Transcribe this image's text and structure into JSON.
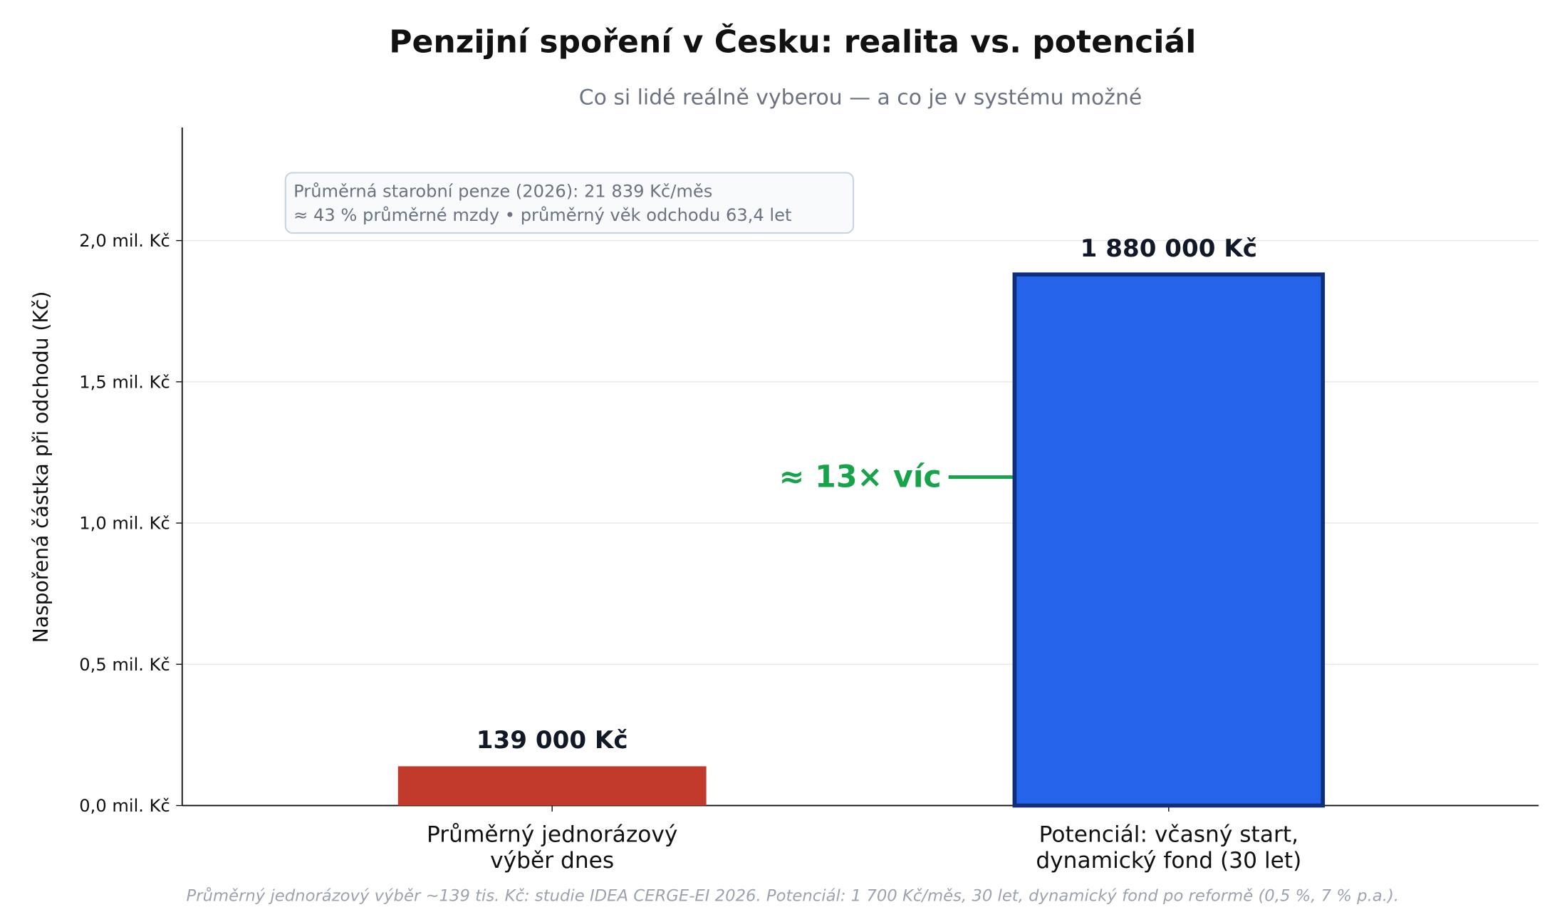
{
  "chart_data": {
    "type": "bar",
    "title": "Penzijní spoření v Česku: realita vs. potenciál",
    "subtitle": "Co si lidé reálně vyberou — a co je v systému možné",
    "y_label": "Naspořená částka při odchodu (Kč)",
    "categories": [
      [
        "Průměrný jednorázový",
        "výběr dnes"
      ],
      [
        "Potenciál: včasný start,",
        "dynamický fond (30 let)"
      ]
    ],
    "values": [
      139000,
      1880000
    ],
    "value_labels": [
      "139 000 Kč",
      "1 880 000 Kč"
    ],
    "colors": [
      "#c0392b",
      "#2563eb"
    ],
    "edge_colors": [
      "#c0392b",
      "#0f2f7a"
    ],
    "ylim": [
      0,
      2400000
    ],
    "yticks": [
      {
        "value": 0,
        "label": "0,0 mil. Kč"
      },
      {
        "value": 500000,
        "label": "0,5 mil. Kč"
      },
      {
        "value": 1000000,
        "label": "1,0 mil. Kč"
      },
      {
        "value": 1500000,
        "label": "1,5 mil. Kč"
      },
      {
        "value": 2000000,
        "label": "2,0 mil. Kč"
      }
    ],
    "grid": true,
    "annotation": "≈ 13× víc",
    "info_box": [
      "Průměrná starobní penze (2026): 21 839 Kč/měs",
      "≈ 43 % průměrné mzdy • průměrný věk odchodu 63,4 let"
    ],
    "footnote": "Průměrný jednorázový výběr ~139 tis. Kč: studie IDEA CERGE-EI 2026. Potenciál: 1 700 Kč/měs, 30 let, dynamický fond po reformě (0,5 %, 7 % p.a.)."
  }
}
